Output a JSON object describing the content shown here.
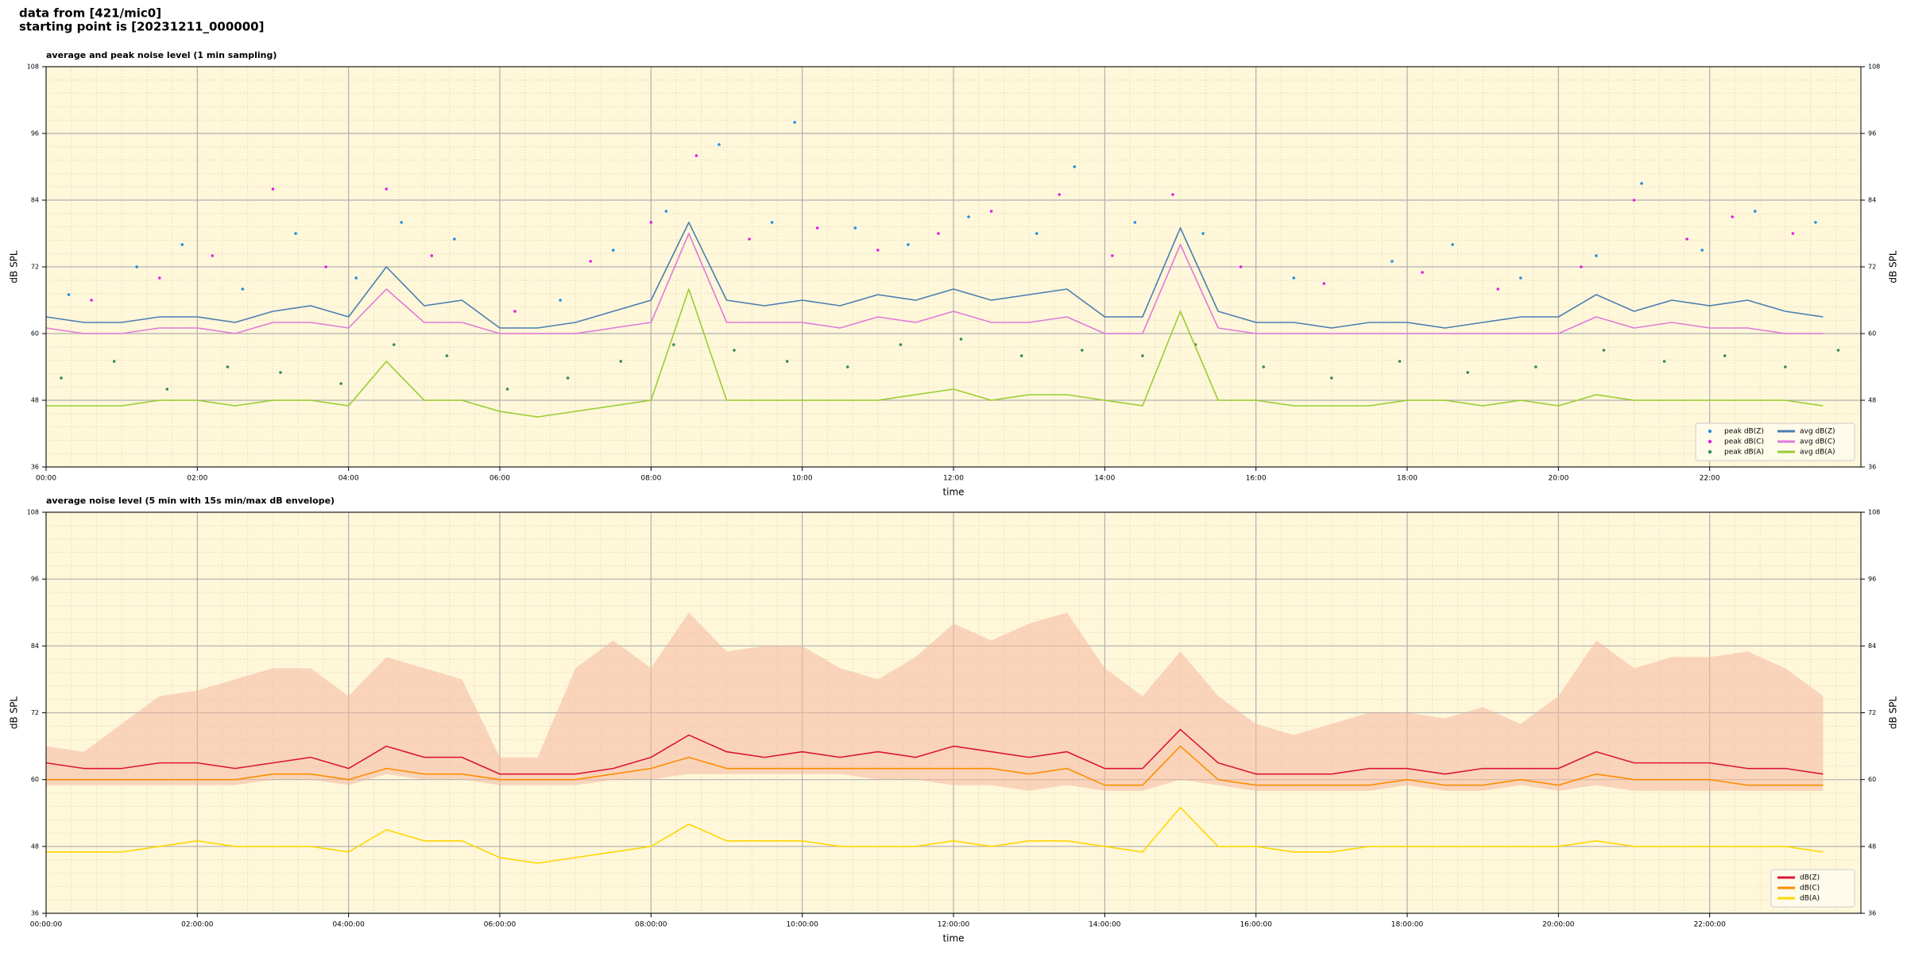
{
  "header": {
    "lines": [
      "data from [421/mic0]",
      "starting point is [20231211_000000]"
    ]
  },
  "chart_data": [
    {
      "type": "line",
      "title": "average and peak noise level (1 min sampling)",
      "xlabel": "time",
      "ylabel": "dB SPL",
      "xlim": [
        0,
        24
      ],
      "ylim": [
        36,
        108
      ],
      "y2lim": [
        36,
        108
      ],
      "yticks": [
        36,
        48,
        60,
        72,
        84,
        96,
        108
      ],
      "xticks": [
        {
          "value": 0,
          "label": "00:00"
        },
        {
          "value": 2,
          "label": "02:00"
        },
        {
          "value": 4,
          "label": "04:00"
        },
        {
          "value": 6,
          "label": "06:00"
        },
        {
          "value": 8,
          "label": "08:00"
        },
        {
          "value": 10,
          "label": "10:00"
        },
        {
          "value": 12,
          "label": "12:00"
        },
        {
          "value": 14,
          "label": "14:00"
        },
        {
          "value": 16,
          "label": "16:00"
        },
        {
          "value": 18,
          "label": "18:00"
        },
        {
          "value": 20,
          "label": "20:00"
        },
        {
          "value": 22,
          "label": "22:00"
        }
      ],
      "grid": true,
      "legend": "lower right",
      "legend_columns": 2,
      "x": [
        0,
        0.5,
        1,
        1.5,
        2,
        2.5,
        3,
        3.5,
        4,
        4.5,
        5,
        5.5,
        6,
        6.5,
        7,
        7.5,
        8,
        8.5,
        9,
        9.5,
        10,
        10.5,
        11,
        11.5,
        12,
        12.5,
        13,
        13.5,
        14,
        14.5,
        15,
        15.5,
        16,
        16.5,
        17,
        17.5,
        18,
        18.5,
        19,
        19.5,
        20,
        20.5,
        21,
        21.5,
        22,
        22.5,
        23,
        23.5
      ],
      "series": [
        {
          "name": "peak dB(Z)",
          "type": "scatter",
          "color": "#1f8fe0",
          "x": [
            0.3,
            1.2,
            1.8,
            2.6,
            3.3,
            4.1,
            4.7,
            5.4,
            6.8,
            7.5,
            8.2,
            8.9,
            9.6,
            9.9,
            10.7,
            11.4,
            12.2,
            13.1,
            13.6,
            14.4,
            15.3,
            16.5,
            17.8,
            18.6,
            19.5,
            20.5,
            21.1,
            21.9,
            22.6,
            23.4
          ],
          "values": [
            67,
            72,
            76,
            68,
            78,
            70,
            80,
            77,
            66,
            75,
            82,
            94,
            80,
            98,
            79,
            76,
            81,
            78,
            90,
            80,
            78,
            70,
            73,
            76,
            70,
            74,
            87,
            75,
            82,
            80
          ]
        },
        {
          "name": "peak dB(C)",
          "type": "scatter",
          "color": "#e020e0",
          "x": [
            0.6,
            1.5,
            2.2,
            3.0,
            3.7,
            4.5,
            5.1,
            6.2,
            7.2,
            8.0,
            8.6,
            9.3,
            10.2,
            11.0,
            11.8,
            12.5,
            13.4,
            14.1,
            14.9,
            15.8,
            16.9,
            18.2,
            19.2,
            20.3,
            21.0,
            21.7,
            22.3,
            23.1
          ],
          "values": [
            66,
            70,
            74,
            86,
            72,
            86,
            74,
            64,
            73,
            80,
            92,
            77,
            79,
            75,
            78,
            82,
            85,
            74,
            85,
            72,
            69,
            71,
            68,
            72,
            84,
            77,
            81,
            78
          ]
        },
        {
          "name": "peak dB(A)",
          "type": "scatter",
          "color": "#2e8b57",
          "x": [
            0.2,
            0.9,
            1.6,
            2.4,
            3.1,
            3.9,
            4.6,
            5.3,
            6.1,
            6.9,
            7.6,
            8.3,
            9.1,
            9.8,
            10.6,
            11.3,
            12.1,
            12.9,
            13.7,
            14.5,
            15.2,
            16.1,
            17.0,
            17.9,
            18.8,
            19.7,
            20.6,
            21.4,
            22.2,
            23.0,
            23.7
          ],
          "values": [
            52,
            55,
            50,
            54,
            53,
            51,
            58,
            56,
            50,
            52,
            55,
            58,
            57,
            55,
            54,
            58,
            59,
            56,
            57,
            56,
            58,
            54,
            52,
            55,
            53,
            54,
            57,
            55,
            56,
            54,
            57
          ]
        },
        {
          "name": "avg dB(Z)",
          "type": "line",
          "color": "#4a7fb0",
          "values": [
            63,
            62,
            62,
            63,
            63,
            62,
            64,
            65,
            63,
            72,
            65,
            66,
            61,
            61,
            62,
            64,
            66,
            80,
            66,
            65,
            66,
            65,
            67,
            66,
            68,
            66,
            67,
            68,
            63,
            63,
            79,
            64,
            62,
            62,
            61,
            62,
            62,
            61,
            62,
            63,
            63,
            67,
            64,
            66,
            65,
            66,
            64,
            63
          ]
        },
        {
          "name": "avg dB(C)",
          "type": "line",
          "color": "#e07ad8",
          "values": [
            61,
            60,
            60,
            61,
            61,
            60,
            62,
            62,
            61,
            68,
            62,
            62,
            60,
            60,
            60,
            61,
            62,
            78,
            62,
            62,
            62,
            61,
            63,
            62,
            64,
            62,
            62,
            63,
            60,
            60,
            76,
            61,
            60,
            60,
            60,
            60,
            60,
            60,
            60,
            60,
            60,
            63,
            61,
            62,
            61,
            61,
            60,
            60
          ]
        },
        {
          "name": "avg dB(A)",
          "type": "line",
          "color": "#9acd32",
          "values": [
            47,
            47,
            47,
            48,
            48,
            47,
            48,
            48,
            47,
            55,
            48,
            48,
            46,
            45,
            46,
            47,
            48,
            68,
            48,
            48,
            48,
            48,
            48,
            49,
            50,
            48,
            49,
            49,
            48,
            47,
            64,
            48,
            48,
            47,
            47,
            47,
            48,
            48,
            47,
            48,
            47,
            49,
            48,
            48,
            48,
            48,
            48,
            47
          ]
        }
      ]
    },
    {
      "type": "line",
      "title": "average noise level (5 min with 15s min/max dB envelope)",
      "xlabel": "time",
      "ylabel": "dB SPL",
      "xlim": [
        0,
        24
      ],
      "ylim": [
        36,
        108
      ],
      "y2lim": [
        36,
        108
      ],
      "yticks": [
        36,
        48,
        60,
        72,
        84,
        96,
        108
      ],
      "xticks": [
        {
          "value": 0,
          "label": "00:00:00"
        },
        {
          "value": 2,
          "label": "02:00:00"
        },
        {
          "value": 4,
          "label": "04:00:00"
        },
        {
          "value": 6,
          "label": "06:00:00"
        },
        {
          "value": 8,
          "label": "08:00:00"
        },
        {
          "value": 10,
          "label": "10:00:00"
        },
        {
          "value": 12,
          "label": "12:00:00"
        },
        {
          "value": 14,
          "label": "14:00:00"
        },
        {
          "value": 16,
          "label": "16:00:00"
        },
        {
          "value": 18,
          "label": "18:00:00"
        },
        {
          "value": 20,
          "label": "20:00:00"
        },
        {
          "value": 22,
          "label": "22:00:00"
        }
      ],
      "grid": true,
      "legend": "lower right",
      "legend_columns": 1,
      "x": [
        0,
        0.5,
        1,
        1.5,
        2,
        2.5,
        3,
        3.5,
        4,
        4.5,
        5,
        5.5,
        6,
        6.5,
        7,
        7.5,
        8,
        8.5,
        9,
        9.5,
        10,
        10.5,
        11,
        11.5,
        12,
        12.5,
        13,
        13.5,
        14,
        14.5,
        15,
        15.5,
        16,
        16.5,
        17,
        17.5,
        18,
        18.5,
        19,
        19.5,
        20,
        20.5,
        21,
        21.5,
        22,
        22.5,
        23,
        23.5
      ],
      "band": {
        "color": "#f4b8a0",
        "high": [
          66,
          65,
          70,
          75,
          76,
          78,
          80,
          80,
          75,
          82,
          80,
          78,
          64,
          64,
          80,
          85,
          80,
          90,
          83,
          84,
          84,
          80,
          78,
          82,
          88,
          85,
          88,
          90,
          80,
          75,
          83,
          75,
          70,
          68,
          70,
          72,
          72,
          71,
          73,
          70,
          75,
          85,
          80,
          82,
          82,
          83,
          80,
          75
        ],
        "low": [
          59,
          59,
          59,
          59,
          59,
          59,
          60,
          60,
          59,
          61,
          60,
          60,
          59,
          59,
          59,
          60,
          60,
          61,
          61,
          61,
          61,
          61,
          60,
          60,
          59,
          59,
          58,
          59,
          58,
          58,
          60,
          59,
          58,
          58,
          58,
          58,
          59,
          58,
          58,
          59,
          58,
          59,
          58,
          58,
          58,
          58,
          58,
          58
        ]
      },
      "series": [
        {
          "name": "dB(Z)",
          "type": "line",
          "color": "#dc143c",
          "values": [
            63,
            62,
            62,
            63,
            63,
            62,
            63,
            64,
            62,
            66,
            64,
            64,
            61,
            61,
            61,
            62,
            64,
            68,
            65,
            64,
            65,
            64,
            65,
            64,
            66,
            65,
            64,
            65,
            62,
            62,
            69,
            63,
            61,
            61,
            61,
            62,
            62,
            61,
            62,
            62,
            62,
            65,
            63,
            63,
            63,
            62,
            62,
            61
          ]
        },
        {
          "name": "dB(C)",
          "type": "line",
          "color": "#ff8c00",
          "values": [
            60,
            60,
            60,
            60,
            60,
            60,
            61,
            61,
            60,
            62,
            61,
            61,
            60,
            60,
            60,
            61,
            62,
            64,
            62,
            62,
            62,
            62,
            62,
            62,
            62,
            62,
            61,
            62,
            59,
            59,
            66,
            60,
            59,
            59,
            59,
            59,
            60,
            59,
            59,
            60,
            59,
            61,
            60,
            60,
            60,
            59,
            59,
            59
          ]
        },
        {
          "name": "dB(A)",
          "type": "line",
          "color": "#ffd700",
          "values": [
            47,
            47,
            47,
            48,
            49,
            48,
            48,
            48,
            47,
            51,
            49,
            49,
            46,
            45,
            46,
            47,
            48,
            52,
            49,
            49,
            49,
            48,
            48,
            48,
            49,
            48,
            49,
            49,
            48,
            47,
            55,
            48,
            48,
            47,
            47,
            48,
            48,
            48,
            48,
            48,
            48,
            49,
            48,
            48,
            48,
            48,
            48,
            47
          ]
        }
      ]
    }
  ]
}
